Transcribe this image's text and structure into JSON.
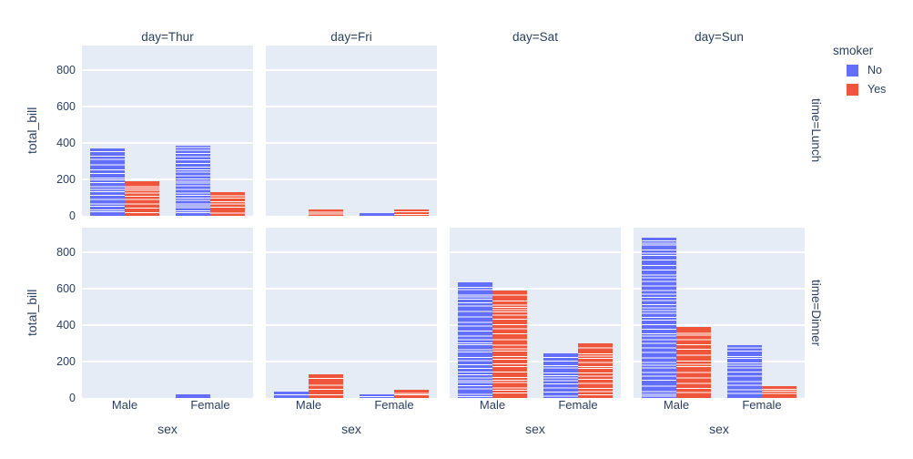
{
  "figure": {
    "background": "#ffffff",
    "panel_background": "#E5ECF6",
    "grid_color": "#ffffff",
    "text_color": "#2a3f5f"
  },
  "legend": {
    "title": "smoker",
    "items": [
      {
        "label": "No",
        "color": "#636EFA"
      },
      {
        "label": "Yes",
        "color": "#EF553B"
      }
    ]
  },
  "chart_data": {
    "type": "bar",
    "mode": "stacked observations per bar, smoker series side-by-side, faceted grid",
    "title": "",
    "xlabel": "sex",
    "ylabel": "total_bill",
    "categories": [
      "Male",
      "Female"
    ],
    "series": [
      "No",
      "Yes"
    ],
    "series_colors": {
      "No": "#636EFA",
      "Yes": "#EF553B"
    },
    "yticks": [
      0,
      200,
      400,
      600,
      800
    ],
    "ylim": [
      0,
      935
    ],
    "grid": true,
    "legend_position": "top-right",
    "facet_columns": [
      "day=Thur",
      "day=Fri",
      "day=Sat",
      "day=Sun"
    ],
    "facet_rows": [
      "time=Lunch",
      "time=Dinner"
    ],
    "panels": [
      {
        "facet": "day=Thur, time=Lunch",
        "row": 0,
        "col": 0,
        "empty": false,
        "bars": [
          {
            "category": "Male",
            "series": "No",
            "value": 370,
            "segments": 19
          },
          {
            "category": "Male",
            "series": "Yes",
            "value": 190,
            "segments": 10
          },
          {
            "category": "Female",
            "series": "No",
            "value": 385,
            "segments": 25
          },
          {
            "category": "Female",
            "series": "Yes",
            "value": 130,
            "segments": 7
          }
        ]
      },
      {
        "facet": "day=Fri, time=Lunch",
        "row": 0,
        "col": 1,
        "empty": false,
        "bars": [
          {
            "category": "Male",
            "series": "Yes",
            "value": 33,
            "segments": 3
          },
          {
            "category": "Female",
            "series": "No",
            "value": 15,
            "segments": 1
          },
          {
            "category": "Female",
            "series": "Yes",
            "value": 34,
            "segments": 3
          }
        ]
      },
      {
        "facet": "day=Sat, time=Lunch",
        "row": 0,
        "col": 2,
        "empty": true,
        "bars": []
      },
      {
        "facet": "day=Sun, time=Lunch",
        "row": 0,
        "col": 3,
        "empty": true,
        "bars": []
      },
      {
        "facet": "day=Thur, time=Dinner",
        "row": 1,
        "col": 0,
        "empty": false,
        "bars": [
          {
            "category": "Female",
            "series": "No",
            "value": 18,
            "segments": 1
          }
        ]
      },
      {
        "facet": "day=Fri, time=Dinner",
        "row": 1,
        "col": 1,
        "empty": false,
        "bars": [
          {
            "category": "Male",
            "series": "No",
            "value": 35,
            "segments": 2
          },
          {
            "category": "Male",
            "series": "Yes",
            "value": 130,
            "segments": 5
          },
          {
            "category": "Female",
            "series": "No",
            "value": 20,
            "segments": 2
          },
          {
            "category": "Female",
            "series": "Yes",
            "value": 45,
            "segments": 3
          }
        ]
      },
      {
        "facet": "day=Sat, time=Dinner",
        "row": 1,
        "col": 2,
        "empty": false,
        "bars": [
          {
            "category": "Male",
            "series": "No",
            "value": 635,
            "segments": 32
          },
          {
            "category": "Male",
            "series": "Yes",
            "value": 590,
            "segments": 27
          },
          {
            "category": "Female",
            "series": "No",
            "value": 245,
            "segments": 13
          },
          {
            "category": "Female",
            "series": "Yes",
            "value": 300,
            "segments": 15
          }
        ]
      },
      {
        "facet": "day=Sun, time=Dinner",
        "row": 1,
        "col": 3,
        "empty": false,
        "bars": [
          {
            "category": "Male",
            "series": "No",
            "value": 880,
            "segments": 43
          },
          {
            "category": "Male",
            "series": "Yes",
            "value": 390,
            "segments": 15
          },
          {
            "category": "Female",
            "series": "No",
            "value": 290,
            "segments": 14
          },
          {
            "category": "Female",
            "series": "Yes",
            "value": 65,
            "segments": 4
          }
        ]
      }
    ]
  }
}
